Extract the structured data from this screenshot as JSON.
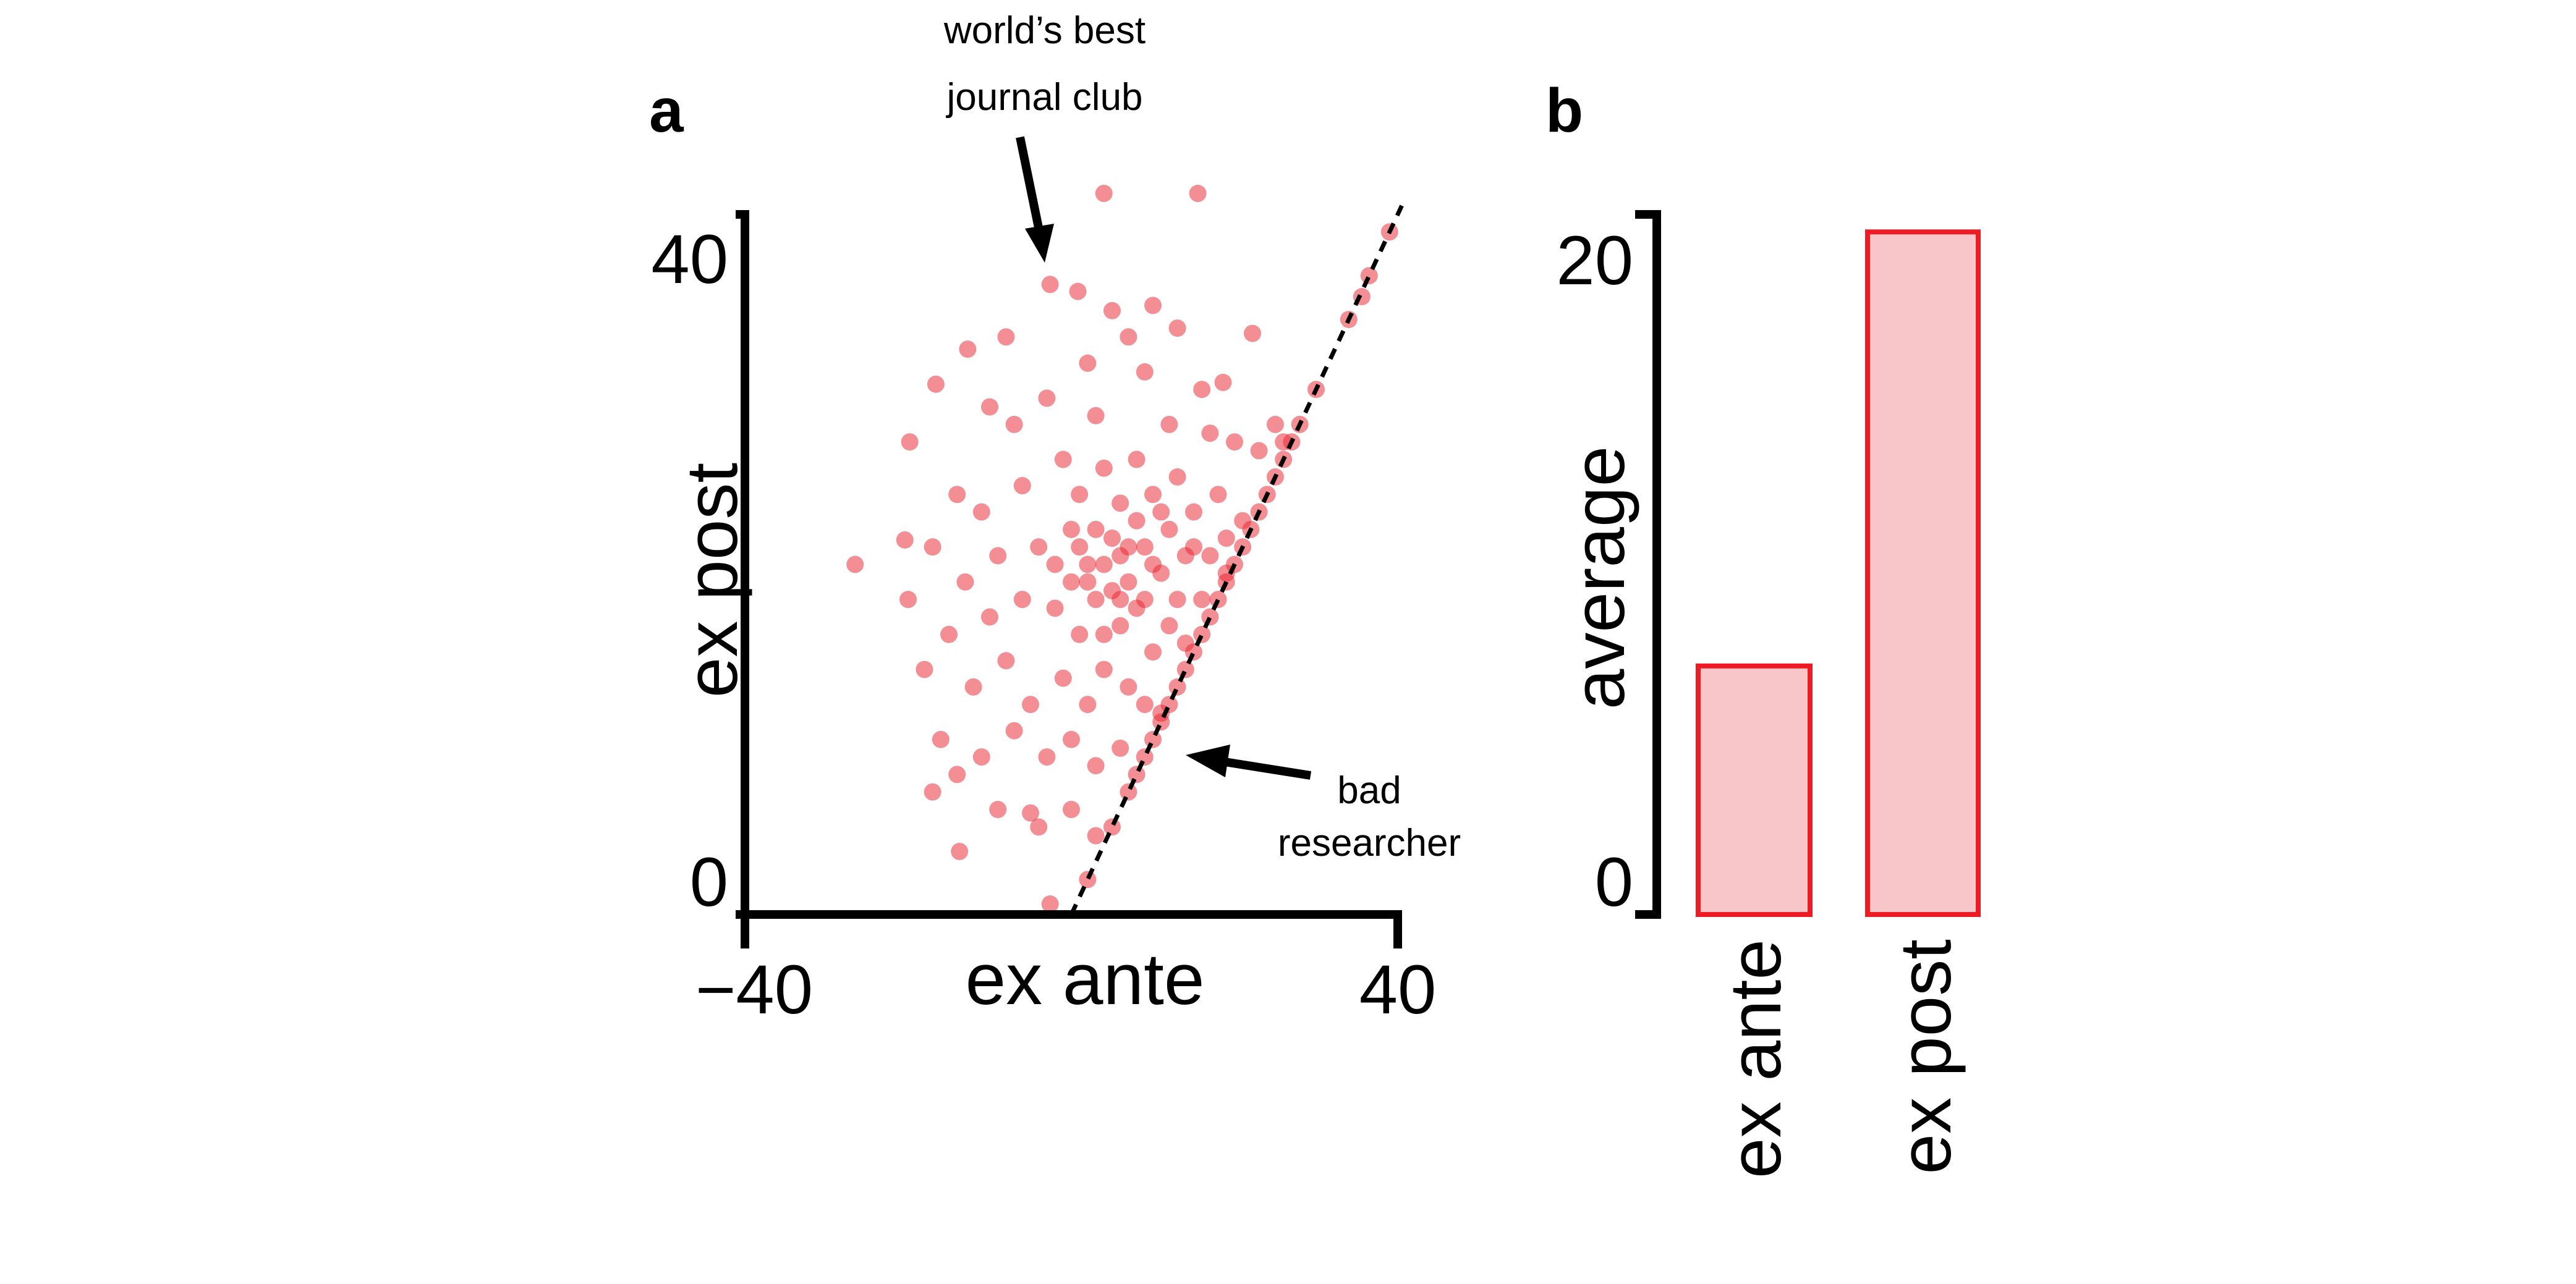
{
  "chart_data": [
    {
      "panel_label": "a",
      "type": "scatter",
      "xlabel": "ex ante",
      "ylabel": "ex post",
      "xlim": [
        -40,
        40
      ],
      "ylim": [
        0,
        40
      ],
      "xticks": [
        "−40",
        "40"
      ],
      "yticks": [
        "0",
        "40"
      ],
      "point_color": "#e8202a",
      "reference_line": "y = x",
      "annotations": [
        {
          "text_line1": "world’s best",
          "text_line2": "journal club"
        },
        {
          "text_line1": "bad",
          "text_line2": "researcher"
        }
      ],
      "points": [
        [
          -26.5,
          20
        ],
        [
          4,
          41.2
        ],
        [
          15.5,
          41.2
        ],
        [
          -2.6,
          36
        ],
        [
          0.8,
          35.6
        ],
        [
          35.6,
          35.3
        ],
        [
          39,
          39
        ],
        [
          34,
          34
        ],
        [
          36.5,
          36.5
        ],
        [
          -13.7,
          3.6
        ],
        [
          -5,
          5.8
        ],
        [
          -19.8,
          27
        ],
        [
          -20.4,
          21.4
        ],
        [
          -16.6,
          30.3
        ],
        [
          -12.7,
          32.3
        ],
        [
          22.2,
          33.2
        ],
        [
          18.6,
          30.4
        ],
        [
          -2.6,
          0.6
        ],
        [
          2,
          2
        ],
        [
          -8,
          33
        ],
        [
          5,
          34.5
        ],
        [
          7,
          33
        ],
        [
          10,
          34.8
        ],
        [
          13,
          33.5
        ],
        [
          2,
          31.5
        ],
        [
          9,
          31
        ],
        [
          16,
          30
        ],
        [
          25,
          28
        ],
        [
          26,
          27
        ],
        [
          -10,
          29
        ],
        [
          -7,
          28
        ],
        [
          -3,
          29.5
        ],
        [
          3,
          28.5
        ],
        [
          12,
          28
        ],
        [
          17,
          27.5
        ],
        [
          20,
          27
        ],
        [
          23,
          26.5
        ],
        [
          -14,
          24
        ],
        [
          -11,
          23
        ],
        [
          -6,
          24.5
        ],
        [
          -1,
          26
        ],
        [
          1,
          24
        ],
        [
          4,
          25.5
        ],
        [
          6,
          23.5
        ],
        [
          8,
          26
        ],
        [
          10,
          24
        ],
        [
          13,
          25
        ],
        [
          15,
          23
        ],
        [
          18,
          24
        ],
        [
          21,
          22.5
        ],
        [
          -17,
          21
        ],
        [
          -13,
          19
        ],
        [
          -9,
          20.5
        ],
        [
          -4,
          21
        ],
        [
          0,
          22
        ],
        [
          2,
          20
        ],
        [
          5,
          21.5
        ],
        [
          7,
          19
        ],
        [
          9,
          21
        ],
        [
          11,
          19.5
        ],
        [
          14,
          20.5
        ],
        [
          16,
          18
        ],
        [
          19,
          19.5
        ],
        [
          -20,
          18
        ],
        [
          -15,
          16
        ],
        [
          -10,
          17
        ],
        [
          -6,
          18
        ],
        [
          -2,
          17.5
        ],
        [
          1,
          16
        ],
        [
          3,
          18
        ],
        [
          6,
          16.5
        ],
        [
          8,
          17.5
        ],
        [
          10,
          15
        ],
        [
          12,
          16.5
        ],
        [
          14,
          15.5
        ],
        [
          -18,
          14
        ],
        [
          -12,
          13
        ],
        [
          -8,
          14.5
        ],
        [
          -5,
          12
        ],
        [
          -1,
          13.5
        ],
        [
          2,
          12
        ],
        [
          4,
          14
        ],
        [
          7,
          13
        ],
        [
          9,
          12
        ],
        [
          11,
          11.5
        ],
        [
          -16,
          10
        ],
        [
          -11,
          9
        ],
        [
          -7,
          10.5
        ],
        [
          -3,
          9
        ],
        [
          0,
          10
        ],
        [
          3,
          8.5
        ],
        [
          6,
          9.5
        ],
        [
          8,
          8
        ],
        [
          -9,
          6
        ],
        [
          -4,
          5
        ],
        [
          0,
          6
        ],
        [
          3,
          4.5
        ],
        [
          -14,
          8
        ],
        [
          -17,
          7
        ],
        [
          5,
          5
        ],
        [
          7,
          7
        ],
        [
          9,
          9
        ],
        [
          10,
          10
        ],
        [
          11,
          11
        ],
        [
          12,
          12
        ],
        [
          13,
          13
        ],
        [
          14,
          14
        ],
        [
          15,
          15
        ],
        [
          16,
          16
        ],
        [
          17,
          17
        ],
        [
          18,
          18
        ],
        [
          19,
          19
        ],
        [
          20,
          20
        ],
        [
          21,
          21
        ],
        [
          22,
          22
        ],
        [
          23,
          23
        ],
        [
          24,
          24
        ],
        [
          25,
          25
        ],
        [
          26,
          26
        ],
        [
          27,
          27
        ],
        [
          28,
          28
        ],
        [
          30,
          30
        ],
        [
          4,
          20
        ],
        [
          6,
          20.5
        ],
        [
          3,
          22
        ],
        [
          5,
          18.5
        ],
        [
          7,
          21
        ],
        [
          2,
          19
        ],
        [
          8,
          22.5
        ],
        [
          6,
          18
        ],
        [
          4,
          16
        ],
        [
          1,
          21
        ],
        [
          10,
          20
        ],
        [
          12,
          22
        ],
        [
          9,
          18
        ],
        [
          0,
          19
        ],
        [
          -2,
          20
        ],
        [
          11,
          23
        ],
        [
          13,
          18
        ],
        [
          15,
          21
        ],
        [
          17,
          20.5
        ],
        [
          19,
          21.5
        ]
      ]
    },
    {
      "panel_label": "b",
      "type": "bar",
      "ylabel": "average",
      "ylim": [
        0,
        20
      ],
      "yticks": [
        "0",
        "20"
      ],
      "categories": [
        "ex ante",
        "ex post"
      ],
      "values": [
        7.1,
        19.5
      ],
      "fill_color": "#f8c6c8",
      "edge_color": "#ed1c24"
    }
  ]
}
